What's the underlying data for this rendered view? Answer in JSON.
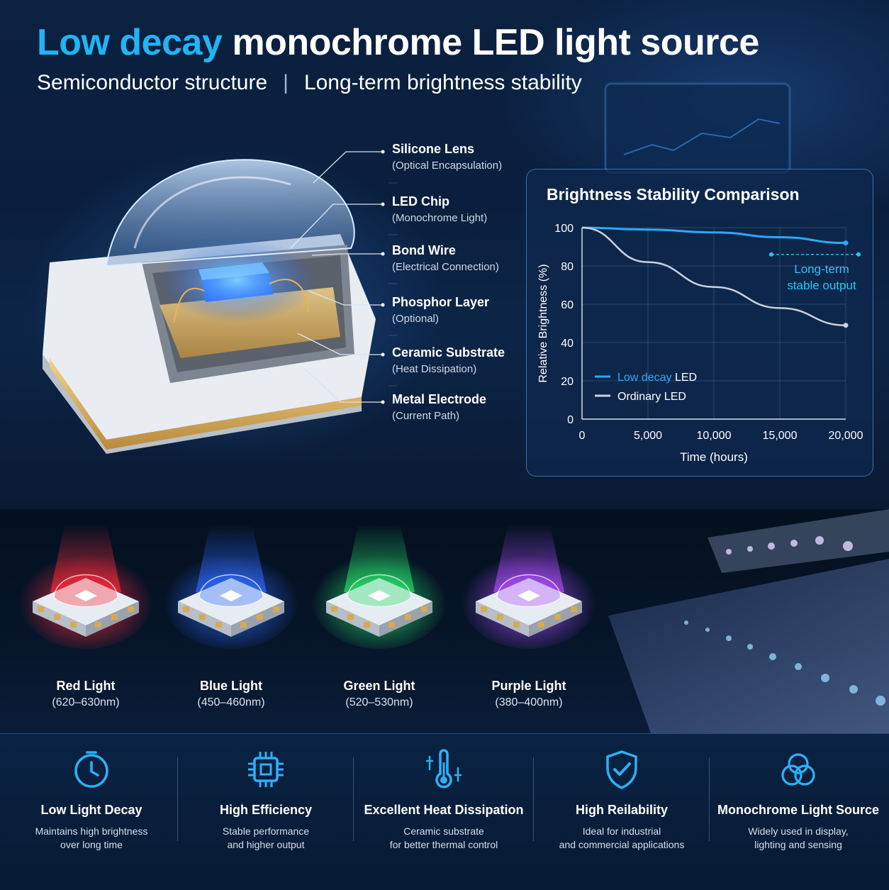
{
  "header": {
    "title_accent": "Low decay",
    "title_rest": "monochrome LED light source",
    "subtitle_left": "Semiconductor structure",
    "subtitle_sep": "|",
    "subtitle_right": "Long-term brightness stability"
  },
  "structure_callouts": [
    {
      "name": "Silicone Lens",
      "desc": "(Optical Encapsulation)"
    },
    {
      "name": "LED Chip",
      "desc": "(Monochrome Light)"
    },
    {
      "name": "Bond Wire",
      "desc": "(Electrical Connection)"
    },
    {
      "name": "Phosphor Layer",
      "desc": "(Optional)"
    },
    {
      "name": "Ceramic Substrate",
      "desc": "(Heat Dissipation)"
    },
    {
      "name": "Metal Electrode",
      "desc": "(Current Path)"
    }
  ],
  "chart_data": {
    "type": "line",
    "title": "Brightness Stability Comparison",
    "xlabel": "Time (hours)",
    "ylabel": "Relative Brightness (%)",
    "xlim": [
      0,
      20000
    ],
    "ylim": [
      0,
      100
    ],
    "x_ticks": [
      "0",
      "5,000",
      "10,000",
      "15,000",
      "20,000"
    ],
    "y_ticks": [
      "0",
      "20",
      "40",
      "60",
      "80",
      "100"
    ],
    "grid": true,
    "legend_position": "bottom-left",
    "series": [
      {
        "name": "Low decay LED",
        "legend_accent": "Low decay",
        "legend_rest": "LED",
        "color": "#2ea8ff",
        "x": [
          0,
          5000,
          10000,
          15000,
          20000
        ],
        "y": [
          100,
          99,
          97.5,
          95,
          92
        ]
      },
      {
        "name": "Ordinary LED",
        "color": "#c9d2de",
        "x": [
          0,
          5000,
          10000,
          15000,
          20000
        ],
        "y": [
          100,
          82,
          69,
          58,
          49
        ]
      }
    ],
    "annotation": {
      "line1": "Long-term",
      "line2": "stable output",
      "color": "#29c6f5"
    }
  },
  "led_colors": [
    {
      "name": "Red Light",
      "wavelength": "(620–630nm)",
      "color": "#ff2a3a"
    },
    {
      "name": "Blue Light",
      "wavelength": "(450–460nm)",
      "color": "#2f6bff"
    },
    {
      "name": "Green Light",
      "wavelength": "(520–530nm)",
      "color": "#27e06a"
    },
    {
      "name": "Purple Light",
      "wavelength": "(380–400nm)",
      "color": "#b04cff"
    }
  ],
  "features": [
    {
      "icon": "clock-icon",
      "name": "Low Light Decay",
      "desc1": "Maintains high brightness",
      "desc2": "over long time"
    },
    {
      "icon": "chip-icon",
      "name": "High Efficiency",
      "desc1": "Stable performance",
      "desc2": "and higher output"
    },
    {
      "icon": "thermometer-icon",
      "name": "Excellent Heat Dissipation",
      "desc1": "Ceramic substrate",
      "desc2": "for better thermal control"
    },
    {
      "icon": "shield-check-icon",
      "name": "High Reilability",
      "desc1": "Ideal for industrial",
      "desc2": "and commercial applications"
    },
    {
      "icon": "color-circles-icon",
      "name": "Monochrome Light Source",
      "desc1": "Widely used in display,",
      "desc2": "lighting and sensing"
    }
  ],
  "theme": {
    "accent": "#22b4f4",
    "background": "#061427"
  }
}
